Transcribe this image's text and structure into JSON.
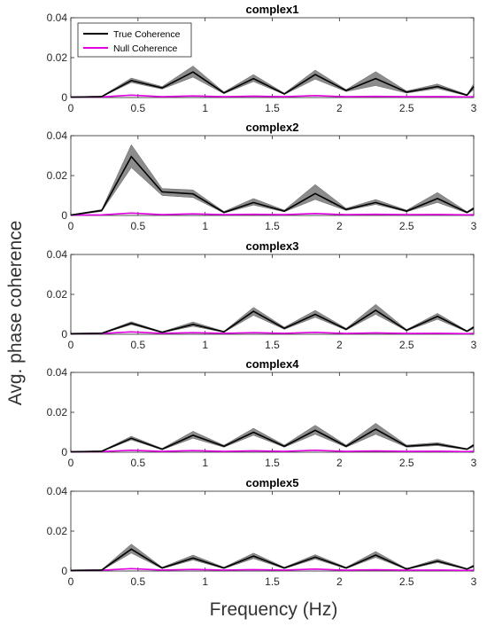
{
  "figure": {
    "ylabel": "Avg. phase coherence",
    "xlabel": "Frequency (Hz)",
    "legend": {
      "true_label": "True Coherence",
      "null_label": "Null Coherence"
    }
  },
  "colors": {
    "true_line": "#000000",
    "true_band": "#808080",
    "null_line": "#e000e0",
    "null_band": "#f4b6f4"
  },
  "chart_data": [
    {
      "type": "line",
      "title": "complex1",
      "xlim": [
        0,
        3
      ],
      "ylim": [
        0,
        0.04
      ],
      "xticks": [
        "0",
        "0.5",
        "1",
        "1.5",
        "2",
        "2.5",
        "3"
      ],
      "yticks": [
        "0",
        "0.02",
        "0.04"
      ],
      "legend_position": "top-left",
      "x": [
        0,
        0.23,
        0.45,
        0.68,
        0.91,
        1.14,
        1.36,
        1.59,
        1.82,
        2.05,
        2.27,
        2.5,
        2.73,
        2.95,
        3.0
      ],
      "series": [
        {
          "name": "True Coherence",
          "values": [
            0.0002,
            0.0005,
            0.0085,
            0.0048,
            0.0128,
            0.0023,
            0.0095,
            0.0018,
            0.0115,
            0.0035,
            0.0095,
            0.0027,
            0.0055,
            0.0012,
            0.0055
          ],
          "band_low": [
            0.0001,
            0.0003,
            0.0075,
            0.0042,
            0.0102,
            0.0019,
            0.008,
            0.0015,
            0.0092,
            0.003,
            0.006,
            0.0022,
            0.0045,
            0.0009,
            0.004
          ],
          "band_high": [
            0.0004,
            0.0007,
            0.0098,
            0.0055,
            0.0158,
            0.0028,
            0.0115,
            0.0022,
            0.0138,
            0.004,
            0.013,
            0.0033,
            0.0068,
            0.0015,
            0.007
          ]
        },
        {
          "name": "Null Coherence",
          "values": [
            0.0002,
            0.0003,
            0.0012,
            0.0004,
            0.0008,
            0.0004,
            0.0007,
            0.0004,
            0.001,
            0.0004,
            0.0006,
            0.0004,
            0.0005,
            0.0003,
            0.0004
          ]
        }
      ]
    },
    {
      "type": "line",
      "title": "complex2",
      "xlim": [
        0,
        3
      ],
      "ylim": [
        0,
        0.04
      ],
      "xticks": [
        "0",
        "0.5",
        "1",
        "1.5",
        "2",
        "2.5",
        "3"
      ],
      "yticks": [
        "0",
        "0.02",
        "0.04"
      ],
      "x": [
        0,
        0.23,
        0.45,
        0.68,
        0.91,
        1.14,
        1.36,
        1.59,
        1.82,
        2.05,
        2.27,
        2.5,
        2.73,
        2.95,
        3.0
      ],
      "series": [
        {
          "name": "True Coherence",
          "values": [
            0.0002,
            0.0025,
            0.0295,
            0.0118,
            0.0108,
            0.0015,
            0.0065,
            0.0022,
            0.011,
            0.003,
            0.0065,
            0.0022,
            0.0085,
            0.0015,
            0.0035
          ],
          "band_low": [
            0.0001,
            0.002,
            0.024,
            0.01,
            0.009,
            0.0012,
            0.0052,
            0.0018,
            0.008,
            0.0025,
            0.0055,
            0.0018,
            0.0065,
            0.0012,
            0.0028
          ],
          "band_high": [
            0.0004,
            0.003,
            0.0355,
            0.0135,
            0.0128,
            0.002,
            0.0085,
            0.0027,
            0.0155,
            0.0036,
            0.008,
            0.0027,
            0.0115,
            0.0019,
            0.0042
          ]
        },
        {
          "name": "Null Coherence",
          "values": [
            0.0002,
            0.0003,
            0.0012,
            0.0004,
            0.0008,
            0.0004,
            0.0006,
            0.0004,
            0.001,
            0.0004,
            0.0006,
            0.0004,
            0.0005,
            0.0003,
            0.0004
          ]
        }
      ]
    },
    {
      "type": "line",
      "title": "complex3",
      "xlim": [
        0,
        3
      ],
      "ylim": [
        0,
        0.04
      ],
      "xticks": [
        "0",
        "0.5",
        "1",
        "1.5",
        "2",
        "2.5",
        "3"
      ],
      "yticks": [
        "0",
        "0.02",
        "0.04"
      ],
      "x": [
        0,
        0.23,
        0.45,
        0.68,
        0.91,
        1.14,
        1.36,
        1.59,
        1.82,
        2.05,
        2.27,
        2.5,
        2.73,
        2.95,
        3.0
      ],
      "series": [
        {
          "name": "True Coherence",
          "values": [
            0.0003,
            0.0005,
            0.0055,
            0.001,
            0.005,
            0.0012,
            0.0115,
            0.003,
            0.01,
            0.0025,
            0.012,
            0.002,
            0.009,
            0.0015,
            0.0035
          ],
          "band_low": [
            0.0002,
            0.0003,
            0.0048,
            0.0008,
            0.004,
            0.001,
            0.0095,
            0.0025,
            0.0085,
            0.0021,
            0.01,
            0.0017,
            0.0075,
            0.0012,
            0.0028
          ],
          "band_high": [
            0.0005,
            0.0007,
            0.0063,
            0.0013,
            0.0062,
            0.0015,
            0.0135,
            0.0036,
            0.012,
            0.003,
            0.015,
            0.0024,
            0.0105,
            0.0018,
            0.0042
          ]
        },
        {
          "name": "Null Coherence",
          "values": [
            0.0003,
            0.0004,
            0.0012,
            0.0005,
            0.0008,
            0.0005,
            0.0008,
            0.0005,
            0.001,
            0.0004,
            0.0007,
            0.0004,
            0.0005,
            0.0003,
            0.0004
          ]
        }
      ]
    },
    {
      "type": "line",
      "title": "complex4",
      "xlim": [
        0,
        3
      ],
      "ylim": [
        0,
        0.04
      ],
      "xticks": [
        "0",
        "0.5",
        "1",
        "1.5",
        "2",
        "2.5",
        "3"
      ],
      "yticks": [
        "0",
        "0.02",
        "0.04"
      ],
      "x": [
        0,
        0.23,
        0.45,
        0.68,
        0.91,
        1.14,
        1.36,
        1.59,
        1.82,
        2.05,
        2.27,
        2.5,
        2.73,
        2.95,
        3.0
      ],
      "series": [
        {
          "name": "True Coherence",
          "values": [
            0.0002,
            0.0005,
            0.007,
            0.0015,
            0.0085,
            0.003,
            0.01,
            0.003,
            0.011,
            0.003,
            0.0115,
            0.003,
            0.004,
            0.0015,
            0.0035
          ],
          "band_low": [
            0.0001,
            0.0003,
            0.0062,
            0.0012,
            0.007,
            0.0025,
            0.0085,
            0.0025,
            0.009,
            0.0025,
            0.009,
            0.0025,
            0.0033,
            0.0012,
            0.0028
          ],
          "band_high": [
            0.0004,
            0.0007,
            0.008,
            0.0019,
            0.0105,
            0.0035,
            0.012,
            0.0036,
            0.0135,
            0.0036,
            0.0145,
            0.0036,
            0.0048,
            0.0018,
            0.0042
          ]
        },
        {
          "name": "Null Coherence",
          "values": [
            0.0002,
            0.0003,
            0.001,
            0.0004,
            0.0008,
            0.0004,
            0.0007,
            0.0004,
            0.001,
            0.0004,
            0.0006,
            0.0004,
            0.0005,
            0.0003,
            0.0004
          ]
        }
      ]
    },
    {
      "type": "line",
      "title": "complex5",
      "xlim": [
        0,
        3
      ],
      "ylim": [
        0,
        0.04
      ],
      "xticks": [
        "0",
        "0.5",
        "1",
        "1.5",
        "2",
        "2.5",
        "3"
      ],
      "yticks": [
        "0",
        "0.02",
        "0.04"
      ],
      "x": [
        0,
        0.23,
        0.45,
        0.68,
        0.91,
        1.14,
        1.36,
        1.59,
        1.82,
        2.05,
        2.27,
        2.5,
        2.73,
        2.95,
        3.0
      ],
      "series": [
        {
          "name": "True Coherence",
          "values": [
            0.0003,
            0.0005,
            0.011,
            0.0015,
            0.0065,
            0.0015,
            0.0075,
            0.0015,
            0.007,
            0.0015,
            0.008,
            0.001,
            0.005,
            0.001,
            0.0025
          ],
          "band_low": [
            0.0002,
            0.0003,
            0.009,
            0.0012,
            0.0055,
            0.0012,
            0.0062,
            0.0012,
            0.006,
            0.0012,
            0.0068,
            0.0008,
            0.0042,
            0.0008,
            0.002
          ],
          "band_high": [
            0.0005,
            0.0007,
            0.0135,
            0.0019,
            0.008,
            0.0019,
            0.009,
            0.0019,
            0.0082,
            0.0019,
            0.0098,
            0.0013,
            0.006,
            0.0013,
            0.0031
          ]
        },
        {
          "name": "Null Coherence",
          "values": [
            0.0003,
            0.0004,
            0.0012,
            0.0005,
            0.0008,
            0.0005,
            0.0007,
            0.0005,
            0.001,
            0.0004,
            0.0006,
            0.0004,
            0.0005,
            0.0003,
            0.0004
          ]
        }
      ]
    }
  ]
}
